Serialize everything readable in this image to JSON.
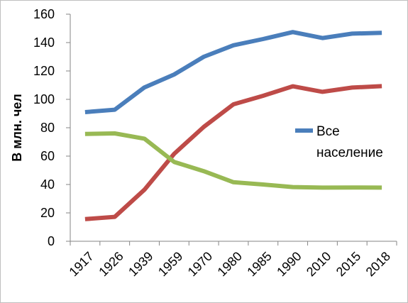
{
  "chart_data": {
    "type": "line",
    "title": "",
    "xlabel": "",
    "ylabel": "В млн. чел",
    "ylim": [
      0,
      160
    ],
    "yticks": [
      0,
      20,
      40,
      60,
      80,
      100,
      120,
      140,
      160
    ],
    "grid": false,
    "legend_position": "right",
    "categories": [
      "1917",
      "1926",
      "1939",
      "1959",
      "1970",
      "1980",
      "1985",
      "1990",
      "2010",
      "2015",
      "2018"
    ],
    "series": [
      {
        "name": "Все население",
        "color": "#4A7EBB",
        "values": [
          91,
          92.7,
          108.4,
          117.5,
          130,
          138.1,
          142.5,
          147.4,
          143.2,
          146.3,
          146.9
        ]
      },
      {
        "color": "#BE4B48",
        "values": [
          15.6,
          17.2,
          36.3,
          61.6,
          80.6,
          96.5,
          102.5,
          109.2,
          105.3,
          108.3,
          109.3
        ]
      },
      {
        "color": "#98B954",
        "values": [
          75.6,
          76,
          72.3,
          55.9,
          49.4,
          41.6,
          40,
          38.2,
          37.8,
          37.9,
          37.8
        ]
      }
    ]
  }
}
